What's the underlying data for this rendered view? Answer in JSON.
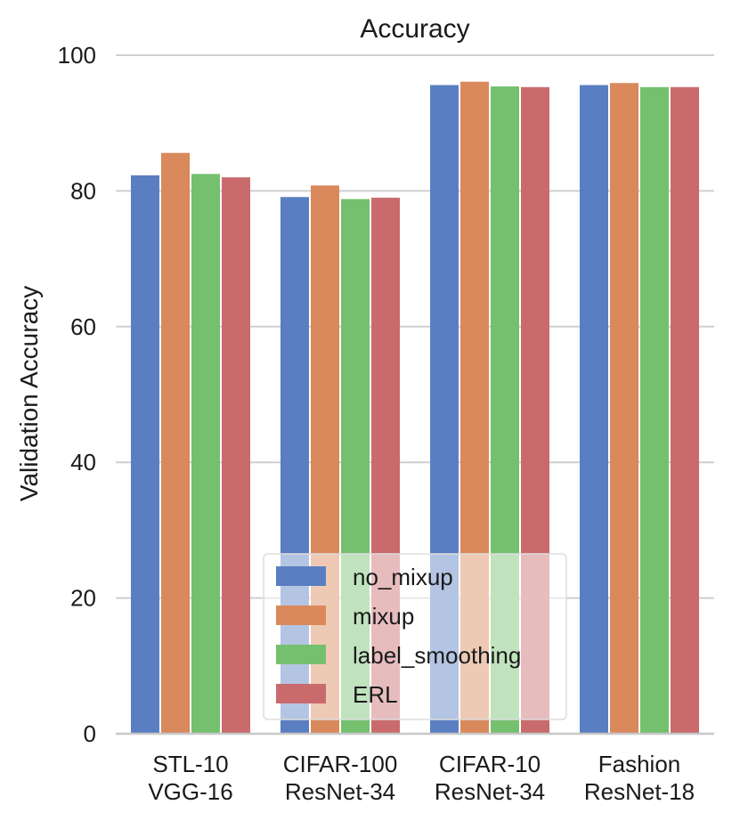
{
  "chart_data": {
    "type": "bar",
    "title": "Accuracy",
    "xlabel": "",
    "ylabel": "Validation Accuracy",
    "ylim": [
      0,
      100
    ],
    "yticks": [
      0,
      20,
      40,
      60,
      80,
      100
    ],
    "grid": true,
    "legend_position": "bottom-center",
    "categories": [
      [
        "STL-10",
        "VGG-16"
      ],
      [
        "CIFAR-100",
        "ResNet-34"
      ],
      [
        "CIFAR-10",
        "ResNet-34"
      ],
      [
        "Fashion",
        "ResNet-18"
      ]
    ],
    "series": [
      {
        "name": "no_mixup",
        "color": "#5a7ec2",
        "values": [
          82.3,
          79.1,
          95.6,
          95.6
        ]
      },
      {
        "name": "mixup",
        "color": "#d9895b",
        "values": [
          85.6,
          80.8,
          96.1,
          95.9
        ]
      },
      {
        "name": "label_smoothing",
        "color": "#74c06f",
        "values": [
          82.5,
          78.8,
          95.4,
          95.3
        ]
      },
      {
        "name": "ERL",
        "color": "#c96b6d",
        "values": [
          82.0,
          79.0,
          95.3,
          95.3
        ]
      }
    ]
  }
}
